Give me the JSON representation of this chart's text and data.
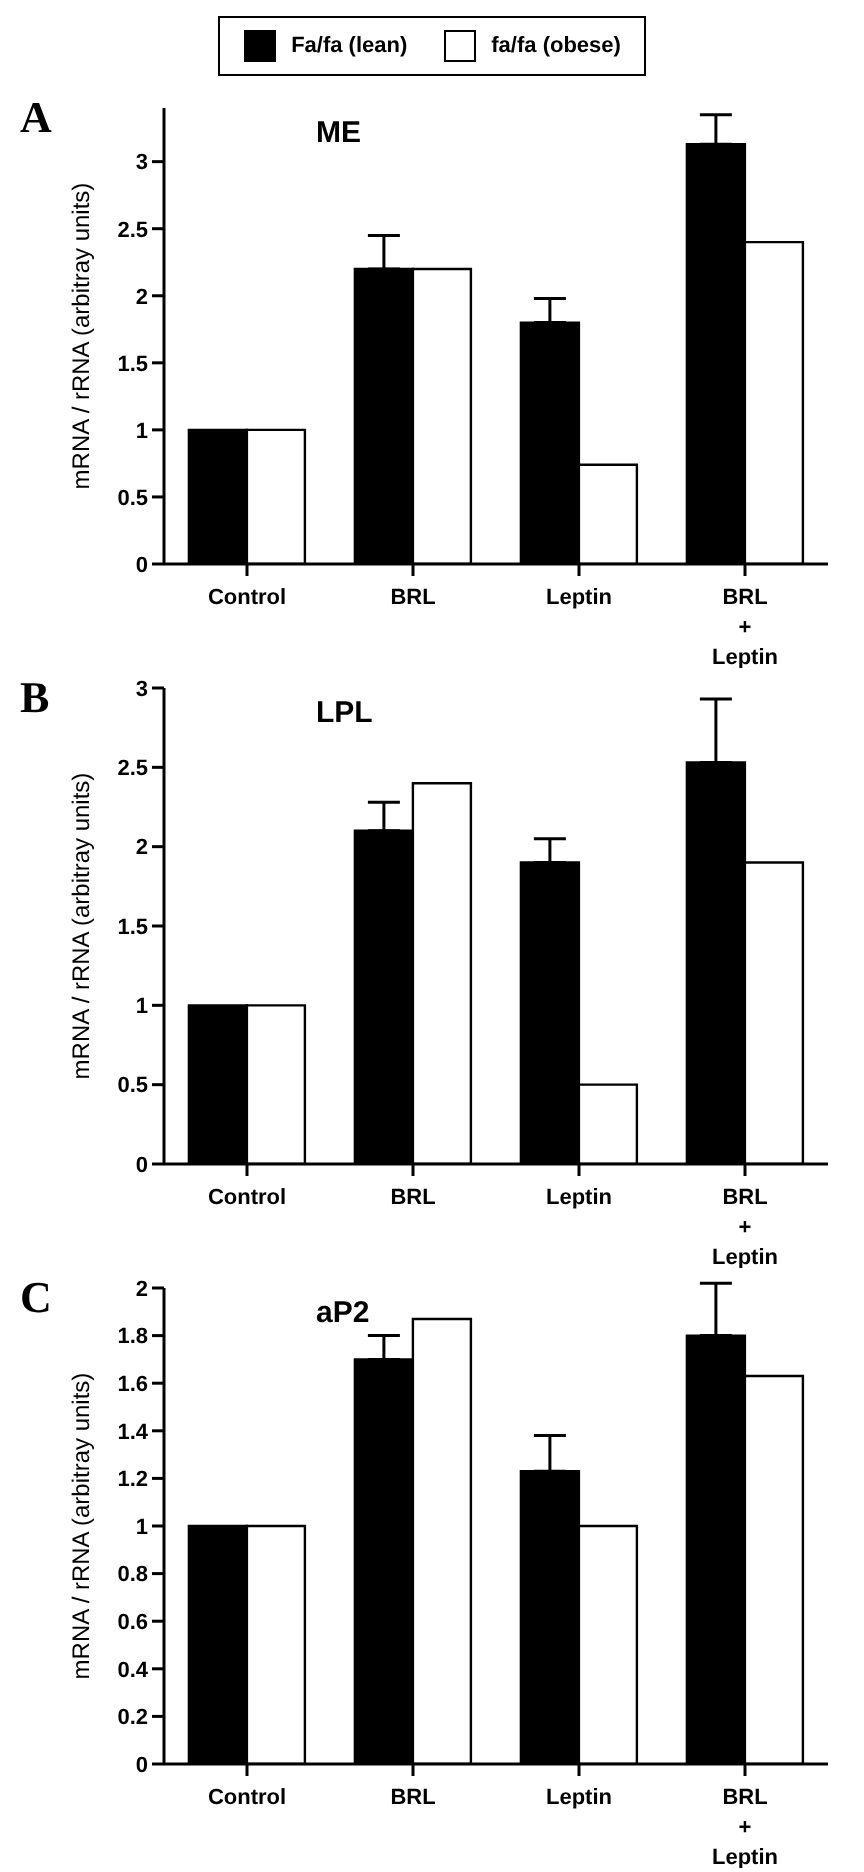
{
  "chart_data": [
    {
      "type": "bar",
      "title": "ME",
      "annotations": [
        "A"
      ],
      "ylabel": "mRNA / rRNA (arbitray units)",
      "categories": [
        "Control",
        "BRL",
        "Leptin",
        "BRL\n+\nLeptin"
      ],
      "legend": "top",
      "ylim": [
        0,
        3.4
      ],
      "yticks": [
        0,
        0.5,
        1,
        1.5,
        2,
        2.5,
        3
      ],
      "grid": false,
      "series": [
        {
          "name": "Fa/fa (lean)",
          "color": "#000000",
          "values": [
            1,
            2.2,
            1.8,
            3.13
          ],
          "errors": [
            null,
            [
              2.2,
              2.45
            ],
            [
              1.8,
              1.98
            ],
            [
              3.13,
              3.35
            ]
          ]
        },
        {
          "name": "fa/fa (obese)",
          "color": "#ffffff",
          "values": [
            1,
            2.2,
            0.74,
            2.4
          ]
        }
      ]
    },
    {
      "type": "bar",
      "title": "LPL",
      "annotations": [
        "B"
      ],
      "ylabel": "mRNA / rRNA (arbitray units)",
      "categories": [
        "Control",
        "BRL",
        "Leptin",
        "BRL\n+\nLeptin"
      ],
      "ylim": [
        0,
        3
      ],
      "yticks": [
        0,
        0.5,
        1,
        1.5,
        2,
        2.5,
        3
      ],
      "grid": false,
      "series": [
        {
          "color": "#000000",
          "values": [
            1,
            2.1,
            1.9,
            2.53
          ],
          "errors": [
            null,
            [
              2.1,
              2.28
            ],
            [
              1.9,
              2.05
            ],
            [
              2.53,
              2.93
            ]
          ]
        },
        {
          "color": "#ffffff",
          "values": [
            1,
            2.4,
            0.5,
            1.9
          ]
        }
      ]
    },
    {
      "type": "bar",
      "title": "aP2",
      "annotations": [
        "C"
      ],
      "ylabel": "mRNA / rRNA (arbitray units)",
      "categories": [
        "Control",
        "BRL",
        "Leptin",
        "BRL\n+\nLeptin"
      ],
      "ylim": [
        0,
        2
      ],
      "yticks": [
        0,
        0.2,
        0.4,
        0.6,
        0.8,
        1,
        1.2,
        1.4,
        1.6,
        1.8,
        2
      ],
      "grid": false,
      "series": [
        {
          "color": "#000000",
          "values": [
            1,
            1.7,
            1.23,
            1.8
          ],
          "errors": [
            null,
            [
              1.7,
              1.8
            ],
            [
              1.23,
              1.38
            ],
            [
              1.8,
              2.02
            ]
          ]
        },
        {
          "color": "#ffffff",
          "values": [
            1,
            1.87,
            1,
            1.63
          ]
        }
      ]
    }
  ]
}
